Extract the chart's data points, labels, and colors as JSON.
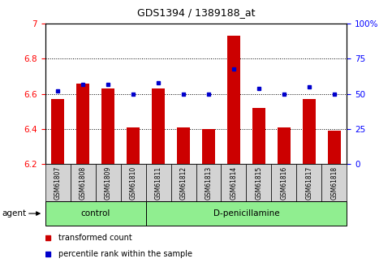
{
  "title": "GDS1394 / 1389188_at",
  "samples": [
    "GSM61807",
    "GSM61808",
    "GSM61809",
    "GSM61810",
    "GSM61811",
    "GSM61812",
    "GSM61813",
    "GSM61814",
    "GSM61815",
    "GSM61816",
    "GSM61817",
    "GSM61818"
  ],
  "transformed_count": [
    6.57,
    6.66,
    6.63,
    6.41,
    6.63,
    6.41,
    6.4,
    6.93,
    6.52,
    6.41,
    6.57,
    6.39
  ],
  "percentile_rank": [
    52,
    57,
    57,
    50,
    58,
    50,
    50,
    68,
    54,
    50,
    55,
    50
  ],
  "groups": [
    {
      "label": "control",
      "start": 0,
      "end": 3
    },
    {
      "label": "D-penicillamine",
      "start": 4,
      "end": 11
    }
  ],
  "ylim_left": [
    6.2,
    7.0
  ],
  "ylim_right": [
    0,
    100
  ],
  "yticks_left": [
    6.2,
    6.4,
    6.6,
    6.8,
    7.0
  ],
  "yticks_right": [
    0,
    25,
    50,
    75,
    100
  ],
  "bar_color": "#cc0000",
  "dot_color": "#0000cc",
  "bar_width": 0.5,
  "group_bg": "#90ee90",
  "tick_label_bg": "#d3d3d3",
  "legend_items": [
    {
      "label": "transformed count",
      "color": "#cc0000"
    },
    {
      "label": "percentile rank within the sample",
      "color": "#0000cc"
    }
  ],
  "agent_label": "agent"
}
